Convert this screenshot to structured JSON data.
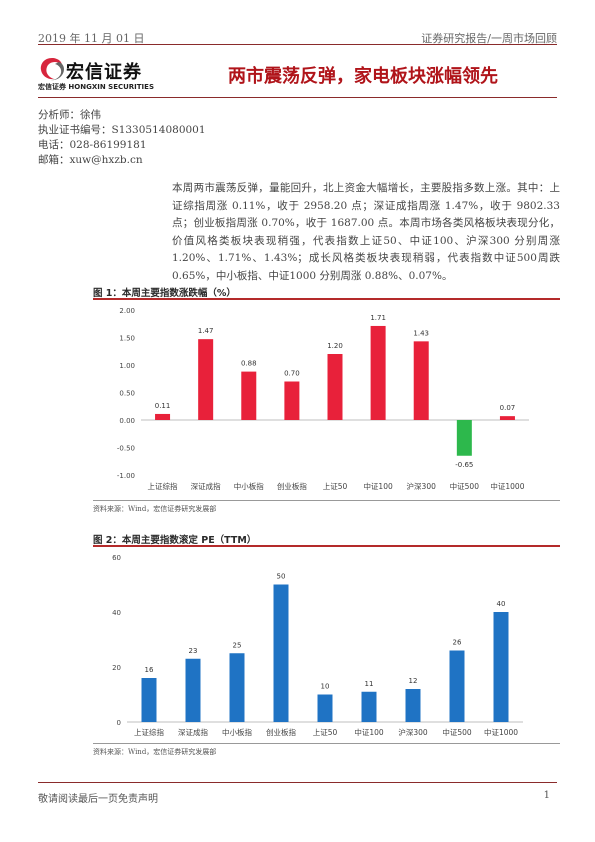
{
  "header": {
    "date": "2019 年 11 月 01 日",
    "report_type": "证券研究报告/一周市场回顾"
  },
  "brand": {
    "name_cn": "宏信证券",
    "name_sub": "宏信证券  HONGXIN SECURITIES",
    "colors": {
      "red": "#d7263d",
      "gray": "#666666"
    }
  },
  "title": "两市震荡反弹，家电板块涨幅领先",
  "author": {
    "analyst": "分析师：徐伟",
    "license": "执业证书编号：S1330514080001",
    "phone": "电话：028-86199181",
    "email": "邮箱：xuw@hxzb.cn"
  },
  "summary": "本周两市震荡反弹，量能回升，北上资金大幅增长，主要股指多数上涨。其中：上证综指周涨 0.11%，收于 2958.20 点；深证成指周涨 1.47%，收于 9802.33 点；创业板指周涨 0.70%，收于 1687.00 点。本周市场各类风格板块表现分化，价值风格类板块表现稍强，代表指数上证50、中证100、沪深300 分别周涨 1.20%、1.71%、1.43%；成长风格类板块表现稍弱，代表指数中证500周跌 0.65%，中小板指、中证1000 分别周涨 0.88%、0.07%。",
  "figure1": {
    "title": "图 1：本周主要指数涨跌幅（%）",
    "source": "资料来源：Wind，宏信证券研究发展部"
  },
  "figure2": {
    "title": "图 2：本周主要指数滚定 PE（TTM）",
    "source": "资料来源：Wind，宏信证券研究发展部"
  },
  "chart_data": [
    {
      "type": "bar",
      "title": "",
      "categories": [
        "上证综指",
        "深证成指",
        "中小板指",
        "创业板指",
        "上证50",
        "中证100",
        "沪深300",
        "中证500",
        "中证1000"
      ],
      "values": [
        0.11,
        1.47,
        0.88,
        0.7,
        1.2,
        1.71,
        1.43,
        -0.65,
        0.07
      ],
      "value_labels": [
        "0.11",
        "1.47",
        "0.88",
        "0.70",
        "1.20",
        "1.71",
        "1.43",
        "-0.65",
        "0.07"
      ],
      "ylim": [
        -1.0,
        2.0
      ],
      "yticks": [
        "2.00",
        "1.50",
        "1.00",
        "0.50",
        "0.00",
        "-0.50",
        "-1.00"
      ],
      "ytick_values": [
        2.0,
        1.5,
        1.0,
        0.5,
        0.0,
        -0.5,
        -1.0
      ],
      "colors": {
        "positive": "#e8213a",
        "negative": "#2db84c"
      },
      "grid": false,
      "xlabel": "",
      "ylabel": ""
    },
    {
      "type": "bar",
      "title": "",
      "categories": [
        "上证综指",
        "深证成指",
        "中小板指",
        "创业板指",
        "上证50",
        "中证100",
        "沪深300",
        "中证500",
        "中证1000"
      ],
      "values": [
        16,
        23,
        25,
        50,
        10,
        11,
        12,
        26,
        40
      ],
      "value_labels": [
        "16",
        "23",
        "25",
        "50",
        "10",
        "11",
        "12",
        "26",
        "40"
      ],
      "ylim": [
        0,
        60
      ],
      "yticks": [
        "60",
        "40",
        "20",
        "0"
      ],
      "ytick_values": [
        60,
        40,
        20,
        0
      ],
      "colors": {
        "bar": "#1f73c4"
      },
      "grid": false,
      "xlabel": "",
      "ylabel": ""
    }
  ]
}
